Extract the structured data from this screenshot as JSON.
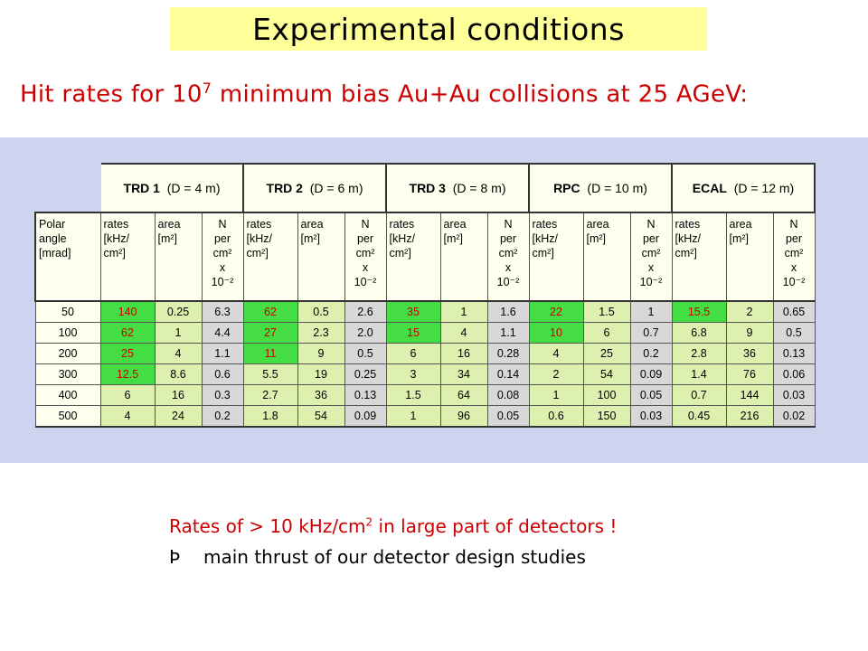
{
  "title": "Experimental conditions",
  "subtitle": {
    "before": "Hit rates for 10",
    "exponent": "7",
    "after": " minimum bias Au+Au collisions at 25 AGeV:"
  },
  "table": {
    "groups": [
      {
        "name": "TRD 1",
        "distance": "(D = 4 m)"
      },
      {
        "name": "TRD 2",
        "distance": "(D = 6 m)"
      },
      {
        "name": "TRD 3",
        "distance": "(D = 8 m)"
      },
      {
        "name": "RPC",
        "distance": "(D = 10 m)"
      },
      {
        "name": "ECAL",
        "distance": "(D = 12 m)"
      }
    ],
    "polar_header": [
      "Polar",
      "angle",
      "[mrad]"
    ],
    "col_rates": [
      "rates",
      "[kHz/",
      "cm²]"
    ],
    "col_area": [
      "area",
      "[m²]"
    ],
    "col_n": [
      "N",
      "per",
      "cm²",
      "x",
      "10⁻²"
    ],
    "rows": [
      {
        "angle": "50",
        "cells": [
          "140",
          "0.25",
          "6.3",
          "62",
          "0.5",
          "2.6",
          "35",
          "1",
          "1.6",
          "22",
          "1.5",
          "1",
          "15.5",
          "2",
          "0.65"
        ]
      },
      {
        "angle": "100",
        "cells": [
          "62",
          "1",
          "4.4",
          "27",
          "2.3",
          "2.0",
          "15",
          "4",
          "1.1",
          "10",
          "6",
          "0.7",
          "6.8",
          "9",
          "0.5"
        ]
      },
      {
        "angle": "200",
        "cells": [
          "25",
          "4",
          "1.1",
          "11",
          "9",
          "0.5",
          "6",
          "16",
          "0.28",
          "4",
          "25",
          "0.2",
          "2.8",
          "36",
          "0.13"
        ]
      },
      {
        "angle": "300",
        "cells": [
          "12.5",
          "8.6",
          "0.6",
          "5.5",
          "19",
          "0.25",
          "3",
          "34",
          "0.14",
          "2",
          "54",
          "0.09",
          "1.4",
          "76",
          "0.06"
        ]
      },
      {
        "angle": "400",
        "cells": [
          "6",
          "16",
          "0.3",
          "2.7",
          "36",
          "0.13",
          "1.5",
          "64",
          "0.08",
          "1",
          "100",
          "0.05",
          "0.7",
          "144",
          "0.03"
        ]
      },
      {
        "angle": "500",
        "cells": [
          "4",
          "24",
          "0.2",
          "1.8",
          "54",
          "0.09",
          "1",
          "96",
          "0.05",
          "0.6",
          "150",
          "0.03",
          "0.45",
          "216",
          "0.02"
        ]
      }
    ],
    "highlight_colors": {
      "bright": "#44dd44",
      "light": "#ddf0b0",
      "gray": "#d8d8d8",
      "highlight_text": "#cc0000"
    },
    "highlighted": [
      [
        0,
        0
      ],
      [
        0,
        3
      ],
      [
        0,
        6
      ],
      [
        0,
        9
      ],
      [
        0,
        12
      ],
      [
        1,
        0
      ],
      [
        1,
        3
      ],
      [
        1,
        6
      ],
      [
        1,
        9
      ],
      [
        2,
        0
      ],
      [
        2,
        3
      ],
      [
        3,
        0
      ]
    ]
  },
  "note": {
    "line1_before": "Rates of > 10 kHz/cm",
    "line1_exp": "2",
    "line1_after": " in large part of detectors !",
    "arrow": "Þ",
    "line2": "main thrust of our detector design  studies"
  }
}
